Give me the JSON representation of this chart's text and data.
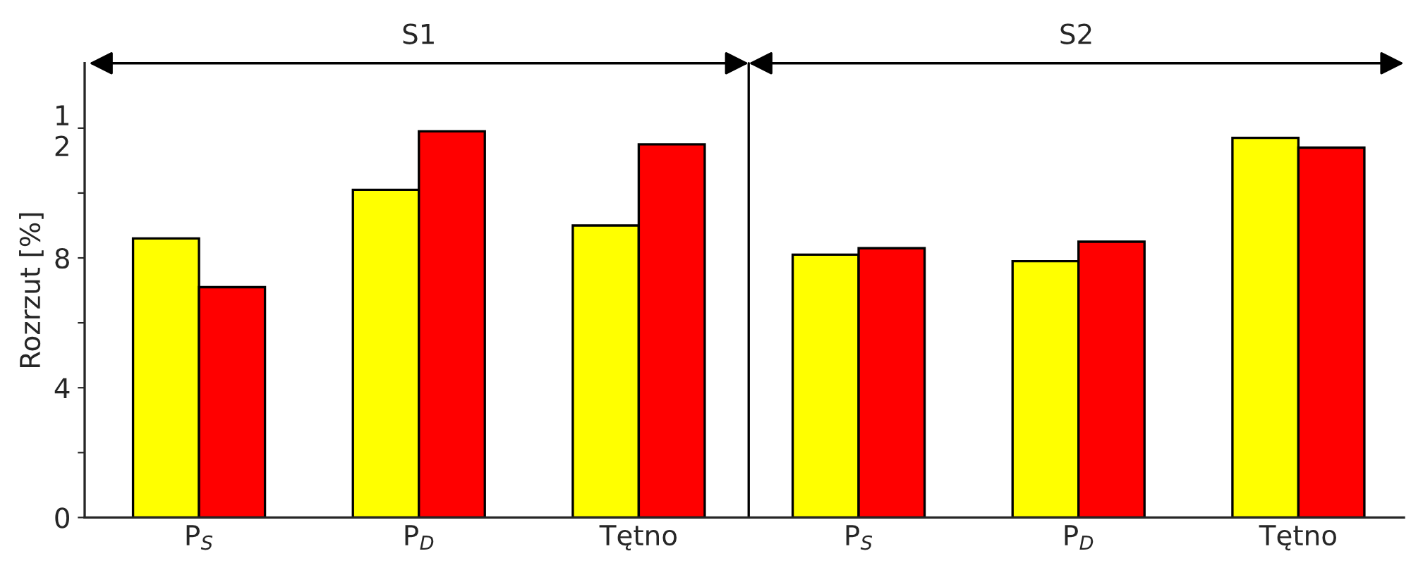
{
  "chart_data": {
    "type": "bar",
    "ylabel": "Rozrzut [%]",
    "categories": [
      "P$_{S}$",
      "P$_{D}$",
      "Tętno",
      "P$_{S}$",
      "P$_{D}$",
      "Tętno"
    ],
    "series": [
      {
        "color": "#ffff00",
        "values": [
          8.6,
          10.1,
          9.0,
          8.1,
          7.9,
          11.7
        ]
      },
      {
        "color": "#ff0000",
        "values": [
          7.1,
          11.9,
          11.5,
          8.3,
          8.5,
          11.4
        ]
      }
    ],
    "ylim": [
      0,
      14
    ],
    "yticks": [
      0,
      {
        "value": 2,
        "label": null
      },
      4,
      {
        "value": 6,
        "label": null
      },
      8,
      {
        "value": 10,
        "label": null
      },
      {
        "value": 12,
        "label": "1\n2"
      }
    ],
    "annotations": [
      "S1",
      "S2"
    ],
    "grid": false
  }
}
